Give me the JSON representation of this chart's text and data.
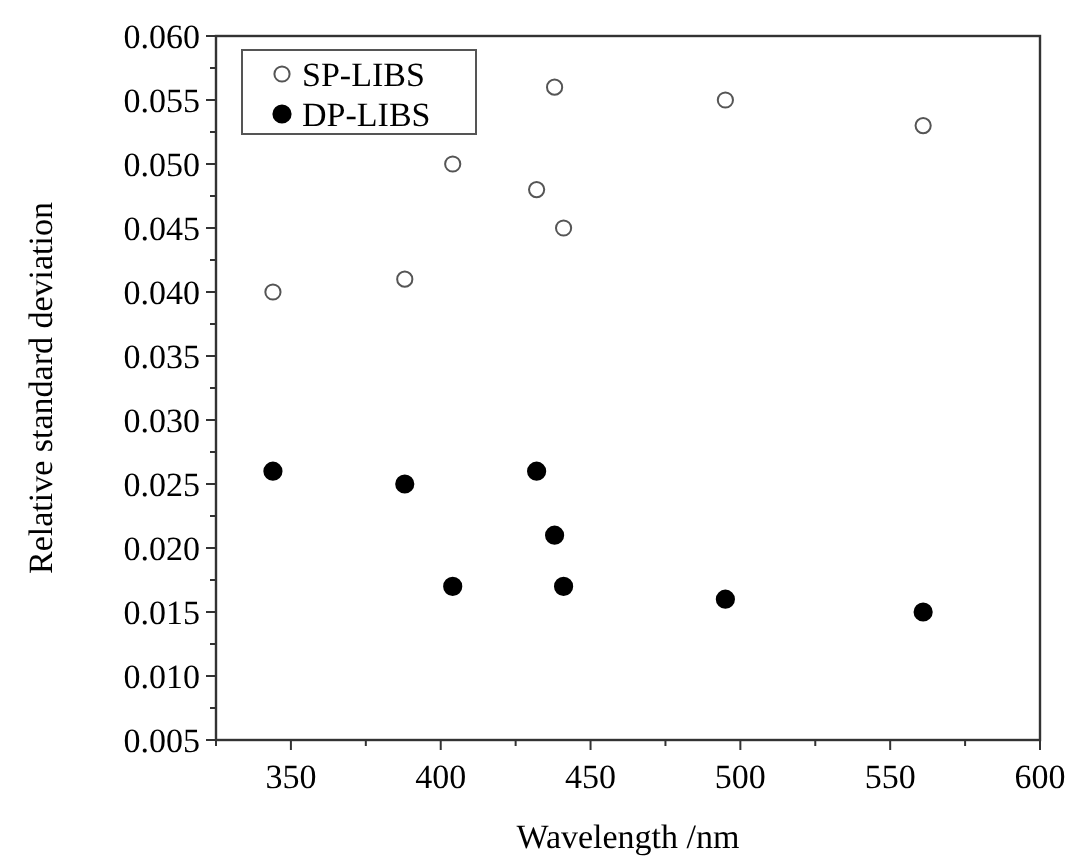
{
  "chart_data": {
    "type": "scatter",
    "xlabel": "Wavelength /nm",
    "ylabel": "Relative standard deviation",
    "x": [
      344,
      388,
      404,
      432,
      438,
      441,
      495,
      561
    ],
    "series": [
      {
        "name": "SP-LIBS",
        "color": "#555555",
        "marker": "circle",
        "values": [
          0.04,
          0.041,
          0.05,
          0.048,
          0.056,
          0.045,
          0.055,
          0.053
        ]
      },
      {
        "name": "DP-LIBS",
        "color": "#000000",
        "marker": "circle",
        "values": [
          0.026,
          0.025,
          0.017,
          0.026,
          0.021,
          0.017,
          0.016,
          0.015
        ]
      }
    ],
    "xlim": [
      325,
      600
    ],
    "xticks": [
      {
        "value": 325,
        "label": null
      },
      350,
      {
        "value": 375,
        "label": null
      },
      400,
      {
        "value": 425,
        "label": null
      },
      450,
      {
        "value": 475,
        "label": null
      },
      500,
      {
        "value": 525,
        "label": null
      },
      550,
      {
        "value": 575,
        "label": null
      },
      600
    ],
    "ylim": [
      0.005,
      0.06
    ],
    "yticks": [
      {
        "value": 0.005,
        "label": "0.005"
      },
      {
        "value": 0.0075,
        "label": null
      },
      {
        "value": 0.01,
        "label": "0.010"
      },
      {
        "value": 0.0125,
        "label": null
      },
      {
        "value": 0.015,
        "label": "0.015"
      },
      {
        "value": 0.0175,
        "label": null
      },
      {
        "value": 0.02,
        "label": "0.020"
      },
      {
        "value": 0.0225,
        "label": null
      },
      {
        "value": 0.025,
        "label": "0.025"
      },
      {
        "value": 0.0275,
        "label": null
      },
      {
        "value": 0.03,
        "label": "0.030"
      },
      {
        "value": 0.0325,
        "label": null
      },
      {
        "value": 0.035,
        "label": "0.035"
      },
      {
        "value": 0.0375,
        "label": null
      },
      {
        "value": 0.04,
        "label": "0.040"
      },
      {
        "value": 0.0425,
        "label": null
      },
      {
        "value": 0.045,
        "label": "0.045"
      },
      {
        "value": 0.0475,
        "label": null
      },
      {
        "value": 0.05,
        "label": "0.050"
      },
      {
        "value": 0.0525,
        "label": null
      },
      {
        "value": 0.055,
        "label": "0.055"
      },
      {
        "value": 0.0575,
        "label": null
      },
      {
        "value": 0.06,
        "label": "0.060"
      }
    ],
    "grid": false,
    "legend": "top left"
  }
}
